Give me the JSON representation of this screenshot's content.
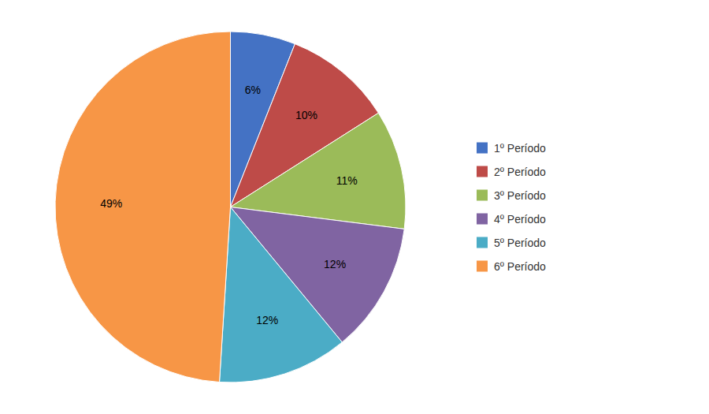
{
  "chart_data": {
    "type": "pie",
    "categories": [
      "1º Período",
      "2º Período",
      "3º Período",
      "4º Período",
      "5º Período",
      "6º Período"
    ],
    "values": [
      6,
      10,
      11,
      12,
      12,
      49
    ],
    "value_labels": [
      "6%",
      "10%",
      "11%",
      "12%",
      "12%",
      "49%"
    ],
    "colors": [
      "#4472C4",
      "#BE4B48",
      "#9BBB59",
      "#8064A2",
      "#4BACC6",
      "#F79646"
    ],
    "data_labels": true,
    "legend": "right"
  }
}
